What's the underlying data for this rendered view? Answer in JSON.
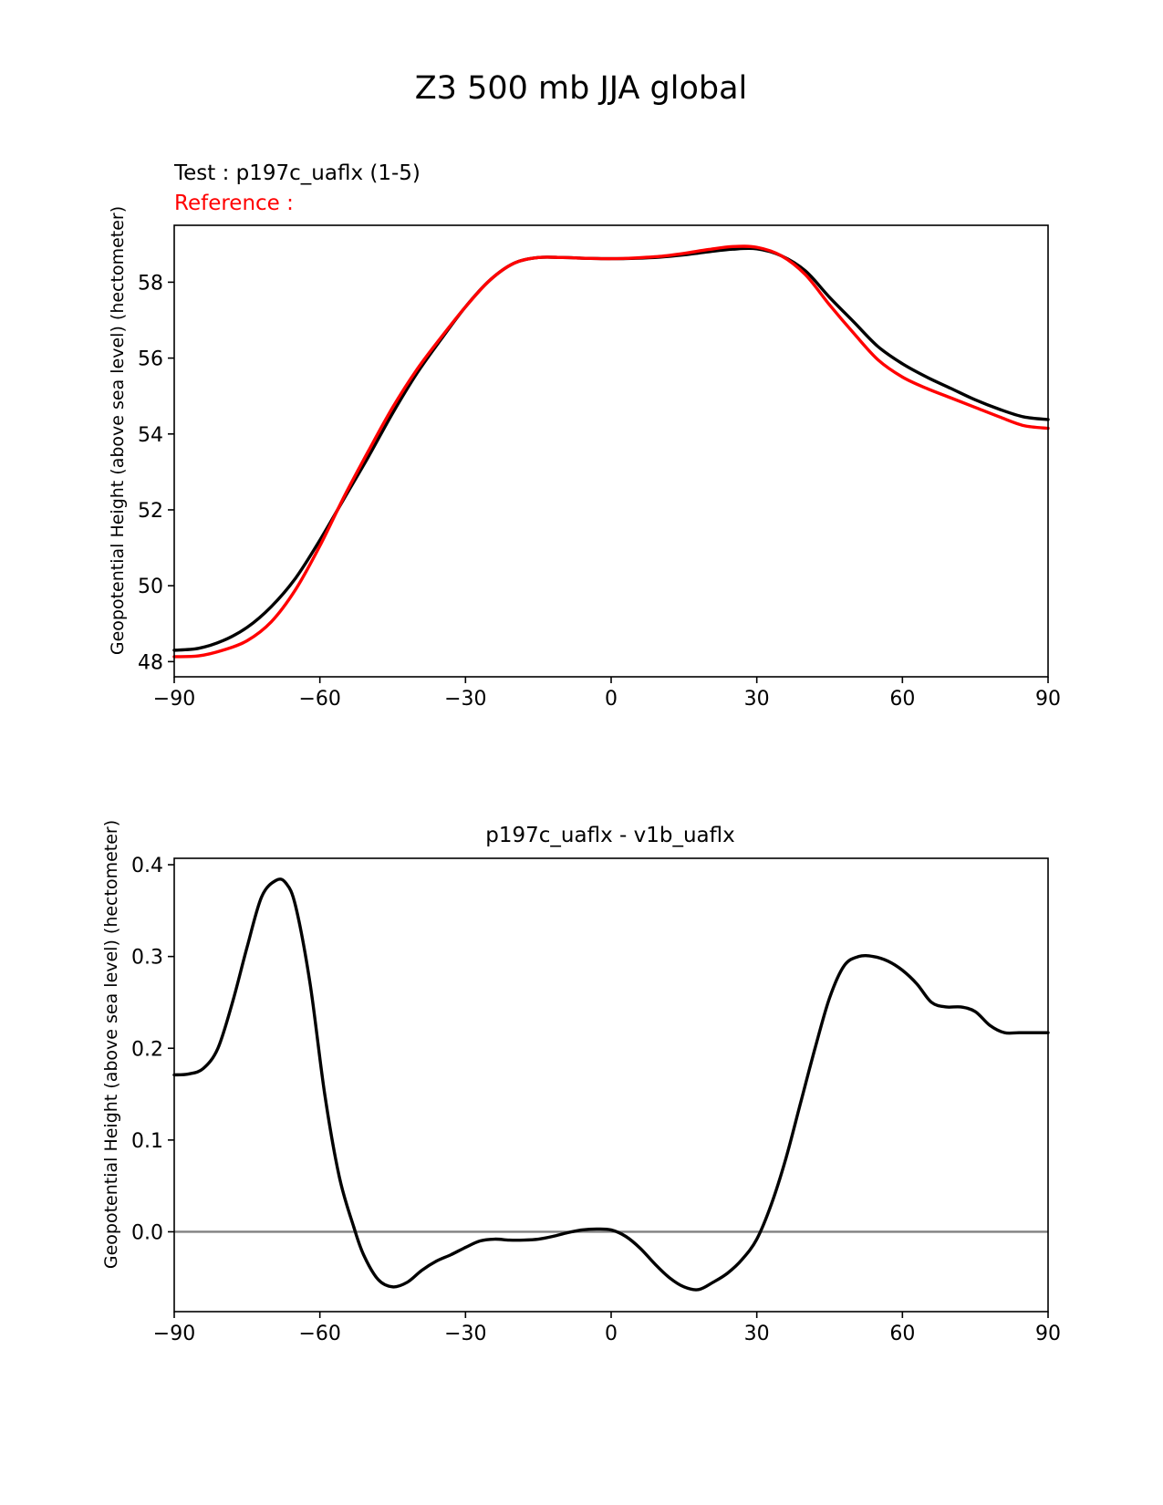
{
  "figure": {
    "title": "Z3 500 mb JJA global"
  },
  "colors": {
    "test": "#000000",
    "reference": "#ff0000",
    "zero_line": "#808080"
  },
  "chart_data": [
    {
      "type": "line",
      "title_test": "Test : p197c_uaflx (1-5)",
      "title_reference": "Reference :",
      "xlabel": "",
      "ylabel": "Geopotential Height (above sea level) (hectometer)",
      "xlim": [
        -90,
        90
      ],
      "ylim": [
        47.6,
        59.5
      ],
      "xticks": [
        -90,
        -60,
        -30,
        0,
        30,
        60,
        90
      ],
      "xtick_labels": [
        "−90",
        "−60",
        "−30",
        "0",
        "30",
        "60",
        "90"
      ],
      "yticks": [
        48,
        50,
        52,
        54,
        56,
        58
      ],
      "ytick_labels": [
        "48",
        "50",
        "52",
        "54",
        "56",
        "58"
      ],
      "grid": false,
      "series": [
        {
          "name": "test",
          "x": [
            -90,
            -85,
            -80,
            -75,
            -70,
            -65,
            -60,
            -55,
            -50,
            -45,
            -40,
            -35,
            -30,
            -25,
            -20,
            -15,
            -10,
            -5,
            0,
            5,
            10,
            15,
            20,
            25,
            30,
            35,
            40,
            45,
            50,
            55,
            60,
            65,
            70,
            75,
            80,
            85,
            90
          ],
          "y": [
            48.3,
            48.35,
            48.55,
            48.9,
            49.45,
            50.2,
            51.2,
            52.3,
            53.4,
            54.55,
            55.6,
            56.5,
            57.35,
            58.05,
            58.5,
            58.65,
            58.65,
            58.63,
            58.62,
            58.63,
            58.66,
            58.72,
            58.8,
            58.87,
            58.88,
            58.7,
            58.3,
            57.6,
            56.95,
            56.3,
            55.85,
            55.5,
            55.2,
            54.9,
            54.65,
            54.45,
            54.38
          ]
        },
        {
          "name": "reference",
          "x": [
            -90,
            -85,
            -80,
            -75,
            -70,
            -65,
            -60,
            -55,
            -50,
            -45,
            -40,
            -35,
            -30,
            -25,
            -20,
            -15,
            -10,
            -5,
            0,
            5,
            10,
            15,
            20,
            25,
            30,
            35,
            40,
            45,
            50,
            55,
            60,
            65,
            70,
            75,
            80,
            85,
            90
          ],
          "y": [
            48.13,
            48.15,
            48.3,
            48.55,
            49.05,
            49.9,
            51.05,
            52.35,
            53.55,
            54.7,
            55.7,
            56.55,
            57.35,
            58.05,
            58.5,
            58.65,
            58.65,
            58.63,
            58.62,
            58.64,
            58.68,
            58.76,
            58.86,
            58.94,
            58.92,
            58.7,
            58.2,
            57.4,
            56.65,
            55.95,
            55.5,
            55.2,
            54.95,
            54.7,
            54.45,
            54.22,
            54.15
          ]
        }
      ]
    },
    {
      "type": "line",
      "title": "p197c_uaflx - v1b_uaflx",
      "xlabel": "",
      "ylabel": "Geopotential Height (above sea level) (hectometer)",
      "xlim": [
        -90,
        90
      ],
      "ylim": [
        -0.087,
        0.407
      ],
      "xticks": [
        -90,
        -60,
        -30,
        0,
        30,
        60,
        90
      ],
      "xtick_labels": [
        "−90",
        "−60",
        "−30",
        "0",
        "30",
        "60",
        "90"
      ],
      "yticks": [
        0.0,
        0.1,
        0.2,
        0.3,
        0.4
      ],
      "ytick_labels": [
        "0.0",
        "0.1",
        "0.2",
        "0.3",
        "0.4"
      ],
      "grid": false,
      "zero_line": true,
      "series": [
        {
          "name": "difference",
          "x": [
            -90,
            -87,
            -84,
            -81,
            -78,
            -75,
            -72,
            -69,
            -67,
            -65,
            -62,
            -59,
            -56,
            -53,
            -51,
            -48,
            -45,
            -42,
            -39,
            -36,
            -33,
            -30,
            -27,
            -24,
            -21,
            -18,
            -15,
            -12,
            -9,
            -6,
            -3,
            0,
            3,
            6,
            9,
            12,
            15,
            18,
            21,
            24,
            27,
            30,
            33,
            36,
            39,
            42,
            45,
            48,
            51,
            54,
            57,
            60,
            63,
            66,
            69,
            72,
            75,
            78,
            81,
            84,
            87,
            90
          ],
          "y": [
            0.171,
            0.172,
            0.178,
            0.2,
            0.25,
            0.31,
            0.365,
            0.383,
            0.38,
            0.355,
            0.27,
            0.15,
            0.06,
            0.005,
            -0.025,
            -0.052,
            -0.06,
            -0.055,
            -0.042,
            -0.032,
            -0.025,
            -0.017,
            -0.01,
            -0.008,
            -0.009,
            -0.009,
            -0.008,
            -0.005,
            -0.001,
            0.002,
            0.003,
            0.002,
            -0.005,
            -0.018,
            -0.035,
            -0.05,
            -0.06,
            -0.063,
            -0.055,
            -0.045,
            -0.03,
            -0.008,
            0.03,
            0.08,
            0.14,
            0.2,
            0.255,
            0.29,
            0.3,
            0.3,
            0.295,
            0.285,
            0.27,
            0.25,
            0.245,
            0.245,
            0.24,
            0.225,
            0.217,
            0.217,
            0.217,
            0.217
          ]
        }
      ]
    }
  ]
}
